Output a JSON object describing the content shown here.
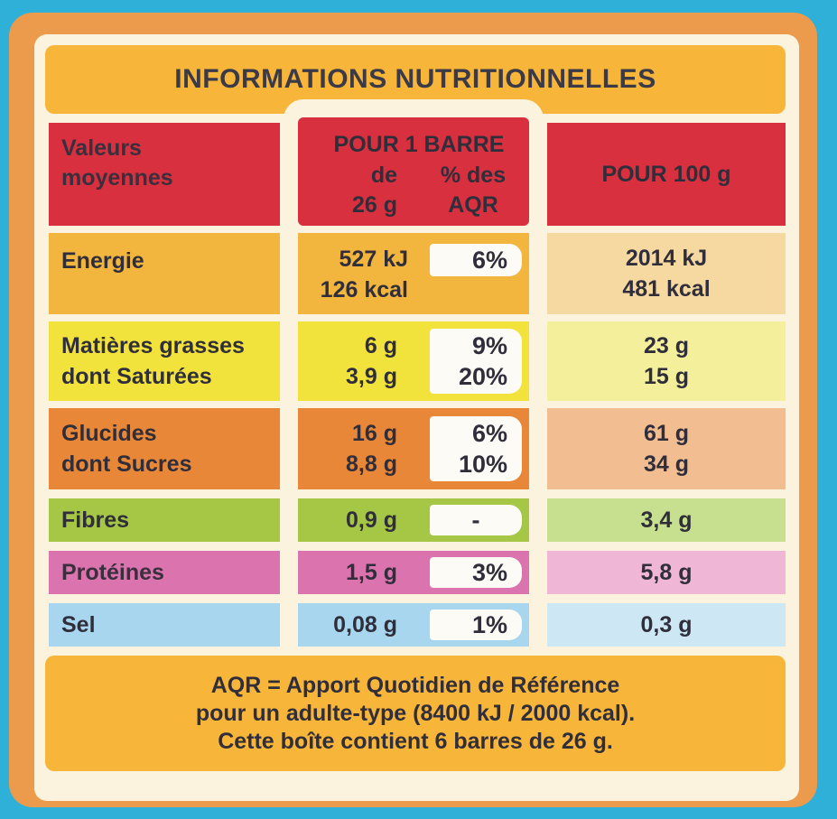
{
  "title": "INFORMATIONS NUTRITIONNELLES",
  "header": {
    "label_line1": "Valeurs",
    "label_line2": "moyennes",
    "per_bar": "POUR 1 BARRE",
    "per_bar_weight_line1": "de",
    "per_bar_weight_line2": "26 g",
    "aqr_line1": "% des",
    "aqr_line2": "AQR",
    "per_100g": "POUR 100 g"
  },
  "rows": [
    {
      "label": "Energie",
      "per_bar_1": "527 kJ",
      "per_bar_2": "126 kcal",
      "aqr": "6%",
      "per_100g_1": "2014 kJ",
      "per_100g_2": "481 kcal"
    },
    {
      "label_1": "Matières grasses",
      "label_2": "dont Saturées",
      "per_bar_1": "6 g",
      "per_bar_2": "3,9 g",
      "aqr_1": "9%",
      "aqr_2": "20%",
      "per_100g_1": "23 g",
      "per_100g_2": "15 g"
    },
    {
      "label_1": "Glucides",
      "label_2": "dont Sucres",
      "per_bar_1": "16 g",
      "per_bar_2": "8,8 g",
      "aqr_1": "6%",
      "aqr_2": "10%",
      "per_100g_1": "61 g",
      "per_100g_2": "34 g"
    },
    {
      "label": "Fibres",
      "per_bar": "0,9 g",
      "aqr": "-",
      "per_100g": "3,4 g"
    },
    {
      "label": "Protéines",
      "per_bar": "1,5 g",
      "aqr": "3%",
      "per_100g": "5,8 g"
    },
    {
      "label": "Sel",
      "per_bar": "0,08 g",
      "aqr": "1%",
      "per_100g": "0,3 g"
    }
  ],
  "footer": {
    "line1": "AQR = Apport Quotidien de Référence",
    "line2": "pour un adulte-type (8400 kJ / 2000 kcal).",
    "line3": "Cette boîte contient 6 barres de 26 g."
  },
  "colors": {
    "background": "#2fb0d8",
    "frame": "#ec9a4b",
    "banner": "#f7b53a",
    "header_red": "#d9303f",
    "energie": "#f2b53e",
    "graisses": "#f1e33b",
    "glucides": "#e98738",
    "fibres": "#a6c646",
    "proteines": "#db73ae",
    "sel": "#a8d6ee"
  }
}
